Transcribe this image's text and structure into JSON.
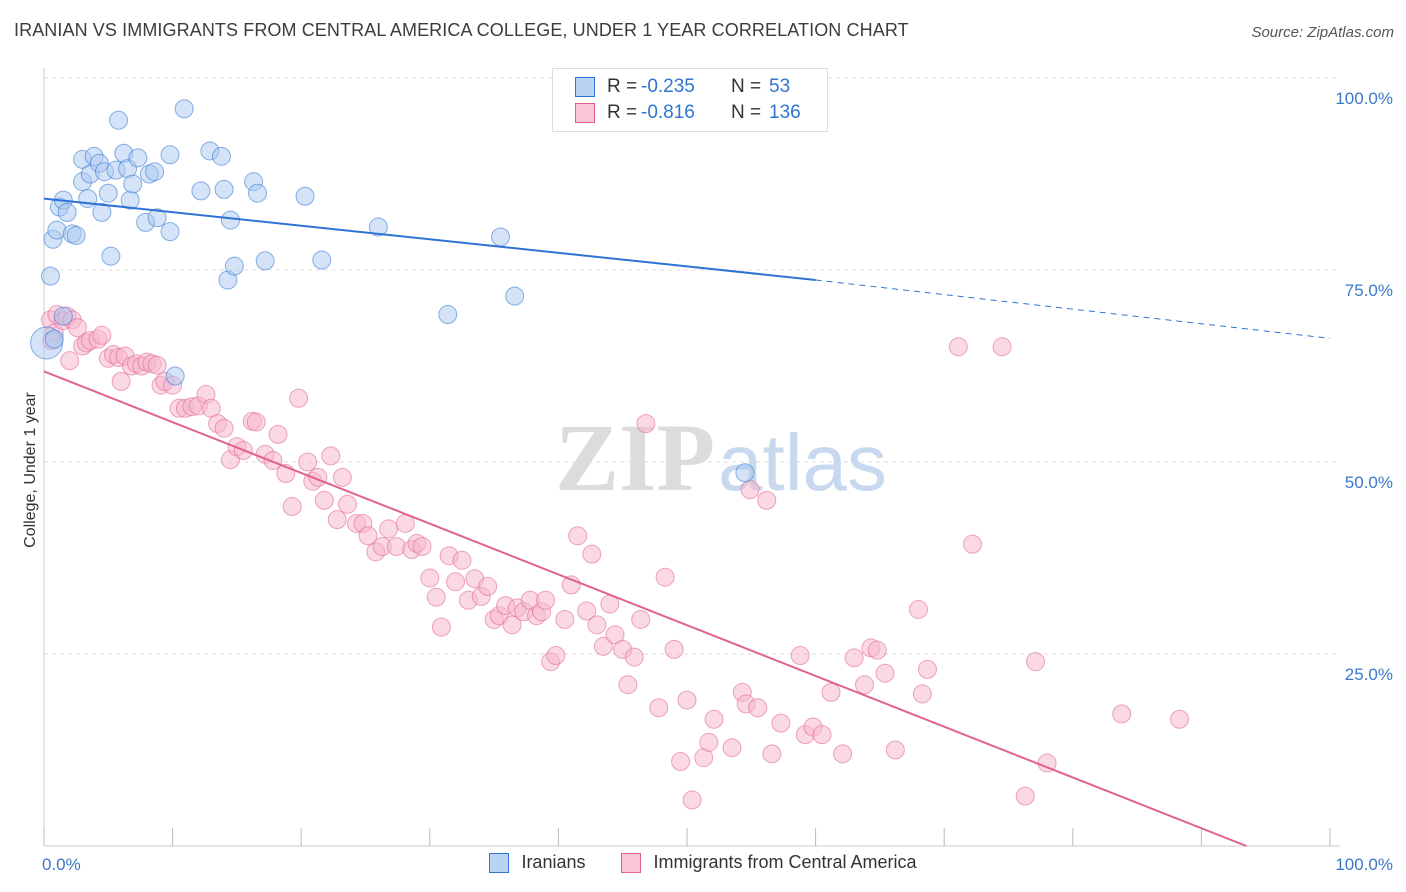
{
  "title": "IRANIAN VS IMMIGRANTS FROM CENTRAL AMERICA COLLEGE, UNDER 1 YEAR CORRELATION CHART",
  "source": "Source: ZipAtlas.com",
  "watermark": {
    "zip": "ZIP",
    "atlas": "atlas"
  },
  "colors": {
    "blue": "#2e74d4",
    "blue_fill": "#aac8ef",
    "blue_legend_fill": "#b9d3f3",
    "pink": "#e0608f",
    "pink_fill": "#f5b8cd",
    "pink_legend_fill": "#f8c6d7",
    "tick_label": "#3b78c9",
    "grid": "#dddddd"
  },
  "legend": {
    "rows": [
      {
        "r_label": "R =",
        "r_value": "-0.235",
        "n_label": "N =",
        "n_value": "53"
      },
      {
        "r_label": "R =",
        "r_value": "-0.816",
        "n_label": "N =",
        "n_value": "136"
      }
    ]
  },
  "chart_data": {
    "type": "scatter",
    "title": "IRANIAN VS IMMIGRANTS FROM CENTRAL AMERICA COLLEGE, UNDER 1 YEAR CORRELATION CHART",
    "xlabel": "",
    "ylabel": "College, Under 1 year",
    "xlim": [
      0,
      100
    ],
    "ylim": [
      0,
      100
    ],
    "x_tick_labels": [
      "0.0%",
      "100.0%"
    ],
    "y_tick_labels": [
      "100.0%",
      "75.0%",
      "50.0%",
      "25.0%"
    ],
    "y_ticks": [
      100,
      75,
      50,
      25
    ],
    "grid": true,
    "legend_position": "top-center",
    "series": [
      {
        "name": "Iranians",
        "color": "#2e74d4",
        "r": -0.235,
        "n": 53,
        "trend": {
          "x0": 0,
          "y0": 84.3,
          "x1": 60,
          "y1": 73.7,
          "dashed_to_x": 100,
          "dashed_to_y": 66.1
        },
        "points": [
          [
            0.2,
            65.5
          ],
          [
            0.5,
            74.2
          ],
          [
            0.7,
            79.0
          ],
          [
            1.0,
            80.2
          ],
          [
            1.2,
            83.2
          ],
          [
            1.5,
            84.1
          ],
          [
            1.8,
            82.5
          ],
          [
            2.2,
            79.7
          ],
          [
            2.5,
            79.5
          ],
          [
            3.0,
            86.5
          ],
          [
            3.0,
            89.4
          ],
          [
            3.4,
            84.3
          ],
          [
            3.6,
            87.5
          ],
          [
            3.9,
            89.8
          ],
          [
            4.3,
            88.9
          ],
          [
            4.5,
            82.5
          ],
          [
            4.7,
            87.8
          ],
          [
            5.0,
            85.0
          ],
          [
            5.2,
            76.8
          ],
          [
            5.6,
            88.0
          ],
          [
            5.8,
            94.5
          ],
          [
            6.2,
            90.2
          ],
          [
            6.5,
            88.2
          ],
          [
            6.7,
            84.1
          ],
          [
            6.9,
            86.2
          ],
          [
            7.3,
            89.6
          ],
          [
            7.9,
            81.2
          ],
          [
            8.2,
            87.5
          ],
          [
            8.6,
            87.8
          ],
          [
            8.8,
            81.8
          ],
          [
            9.8,
            80.0
          ],
          [
            9.8,
            90.0
          ],
          [
            10.2,
            61.2
          ],
          [
            10.9,
            96.0
          ],
          [
            12.2,
            85.3
          ],
          [
            12.9,
            90.5
          ],
          [
            13.8,
            89.8
          ],
          [
            14.0,
            85.5
          ],
          [
            14.3,
            73.7
          ],
          [
            14.5,
            81.5
          ],
          [
            14.8,
            75.5
          ],
          [
            16.3,
            86.5
          ],
          [
            16.6,
            85.0
          ],
          [
            17.2,
            76.2
          ],
          [
            20.3,
            84.6
          ],
          [
            21.6,
            76.3
          ],
          [
            26.0,
            80.6
          ],
          [
            31.4,
            69.2
          ],
          [
            35.5,
            79.3
          ],
          [
            36.6,
            71.6
          ],
          [
            54.5,
            48.6
          ],
          [
            0.8,
            66.0
          ],
          [
            1.5,
            69.0
          ]
        ]
      },
      {
        "name": "Immigrants from Central America",
        "color": "#e0608f",
        "r": -0.816,
        "n": 136,
        "trend": {
          "x0": 0,
          "y0": 61.8,
          "x1": 93.5,
          "y1": 0
        },
        "points": [
          [
            0.5,
            68.5
          ],
          [
            0.8,
            66.8
          ],
          [
            1.0,
            69.2
          ],
          [
            1.5,
            68.4
          ],
          [
            1.8,
            69.0
          ],
          [
            2.2,
            68.5
          ],
          [
            2.6,
            67.5
          ],
          [
            3.0,
            65.1
          ],
          [
            3.3,
            65.5
          ],
          [
            3.6,
            65.8
          ],
          [
            4.2,
            66.0
          ],
          [
            4.5,
            66.5
          ],
          [
            5.0,
            63.5
          ],
          [
            5.4,
            64.0
          ],
          [
            5.8,
            63.6
          ],
          [
            6.3,
            63.8
          ],
          [
            6.8,
            62.5
          ],
          [
            7.2,
            62.8
          ],
          [
            7.6,
            62.5
          ],
          [
            8.0,
            63.0
          ],
          [
            8.4,
            62.8
          ],
          [
            8.8,
            62.6
          ],
          [
            9.1,
            60.0
          ],
          [
            9.4,
            60.5
          ],
          [
            10.0,
            60.0
          ],
          [
            10.5,
            57.0
          ],
          [
            11.0,
            57.0
          ],
          [
            11.5,
            57.2
          ],
          [
            12.0,
            57.3
          ],
          [
            12.6,
            58.8
          ],
          [
            13.0,
            57.0
          ],
          [
            13.5,
            55.0
          ],
          [
            14.0,
            54.4
          ],
          [
            14.5,
            50.3
          ],
          [
            15.0,
            52.0
          ],
          [
            15.5,
            51.5
          ],
          [
            16.2,
            55.3
          ],
          [
            16.5,
            55.2
          ],
          [
            17.2,
            51.0
          ],
          [
            17.8,
            50.2
          ],
          [
            18.2,
            53.6
          ],
          [
            18.8,
            48.5
          ],
          [
            19.3,
            44.2
          ],
          [
            19.8,
            58.3
          ],
          [
            20.5,
            50.0
          ],
          [
            20.9,
            47.5
          ],
          [
            21.3,
            48.0
          ],
          [
            21.8,
            45.0
          ],
          [
            22.3,
            50.8
          ],
          [
            22.8,
            42.5
          ],
          [
            23.2,
            48.0
          ],
          [
            23.6,
            44.5
          ],
          [
            24.3,
            42.0
          ],
          [
            24.8,
            42.0
          ],
          [
            25.2,
            40.4
          ],
          [
            25.8,
            38.3
          ],
          [
            26.3,
            39.0
          ],
          [
            26.8,
            41.3
          ],
          [
            27.4,
            39.0
          ],
          [
            28.1,
            42.0
          ],
          [
            28.6,
            38.6
          ],
          [
            29.0,
            39.4
          ],
          [
            29.4,
            39.0
          ],
          [
            30.0,
            34.9
          ],
          [
            30.5,
            32.4
          ],
          [
            30.9,
            28.5
          ],
          [
            31.5,
            37.8
          ],
          [
            32.0,
            34.4
          ],
          [
            32.5,
            37.2
          ],
          [
            33.0,
            32.0
          ],
          [
            33.5,
            34.8
          ],
          [
            34.0,
            32.5
          ],
          [
            34.5,
            33.8
          ],
          [
            35.0,
            29.5
          ],
          [
            35.4,
            30.0
          ],
          [
            35.9,
            31.3
          ],
          [
            36.4,
            28.8
          ],
          [
            36.8,
            31.0
          ],
          [
            37.3,
            30.5
          ],
          [
            37.8,
            32.0
          ],
          [
            38.3,
            30.0
          ],
          [
            38.7,
            30.5
          ],
          [
            39.0,
            32.0
          ],
          [
            39.4,
            24.0
          ],
          [
            39.8,
            24.8
          ],
          [
            40.5,
            29.5
          ],
          [
            41.0,
            34.0
          ],
          [
            41.5,
            40.4
          ],
          [
            42.2,
            30.6
          ],
          [
            42.6,
            38.0
          ],
          [
            43.0,
            28.8
          ],
          [
            43.5,
            26.0
          ],
          [
            44.0,
            31.5
          ],
          [
            44.4,
            27.5
          ],
          [
            45.0,
            25.6
          ],
          [
            45.4,
            21.0
          ],
          [
            45.9,
            24.6
          ],
          [
            46.4,
            29.5
          ],
          [
            46.8,
            55.0
          ],
          [
            47.8,
            18.0
          ],
          [
            48.3,
            35.0
          ],
          [
            49.0,
            25.6
          ],
          [
            49.5,
            11.0
          ],
          [
            50.0,
            19.0
          ],
          [
            50.4,
            6.0
          ],
          [
            51.3,
            11.5
          ],
          [
            51.7,
            13.5
          ],
          [
            52.1,
            16.5
          ],
          [
            53.5,
            12.8
          ],
          [
            54.3,
            20.0
          ],
          [
            54.6,
            18.5
          ],
          [
            54.9,
            46.4
          ],
          [
            55.5,
            18.0
          ],
          [
            56.2,
            45.0
          ],
          [
            56.6,
            12.0
          ],
          [
            57.3,
            16.0
          ],
          [
            58.8,
            24.8
          ],
          [
            59.2,
            14.5
          ],
          [
            59.8,
            15.5
          ],
          [
            60.5,
            14.5
          ],
          [
            61.2,
            20.0
          ],
          [
            62.1,
            12.0
          ],
          [
            63.0,
            24.5
          ],
          [
            63.8,
            21.0
          ],
          [
            64.3,
            25.8
          ],
          [
            64.8,
            25.5
          ],
          [
            65.4,
            22.5
          ],
          [
            66.2,
            12.5
          ],
          [
            68.0,
            30.8
          ],
          [
            68.3,
            19.8
          ],
          [
            68.7,
            23.0
          ],
          [
            71.1,
            65.0
          ],
          [
            72.2,
            39.3
          ],
          [
            74.5,
            65.0
          ],
          [
            76.3,
            6.5
          ],
          [
            77.1,
            24.0
          ],
          [
            78.0,
            10.8
          ],
          [
            83.8,
            17.2
          ],
          [
            88.3,
            16.5
          ],
          [
            0.6,
            65.8
          ],
          [
            2.0,
            63.2
          ],
          [
            6.0,
            60.5
          ]
        ]
      }
    ]
  },
  "axes": {
    "x_left_label": "0.0%",
    "x_right_label": "100.0%",
    "y_labels": [
      "100.0%",
      "75.0%",
      "50.0%",
      "25.0%"
    ],
    "y_title": "College, Under 1 year"
  },
  "bottom_legend": [
    {
      "label": "Iranians"
    },
    {
      "label": "Immigrants from Central America"
    }
  ]
}
